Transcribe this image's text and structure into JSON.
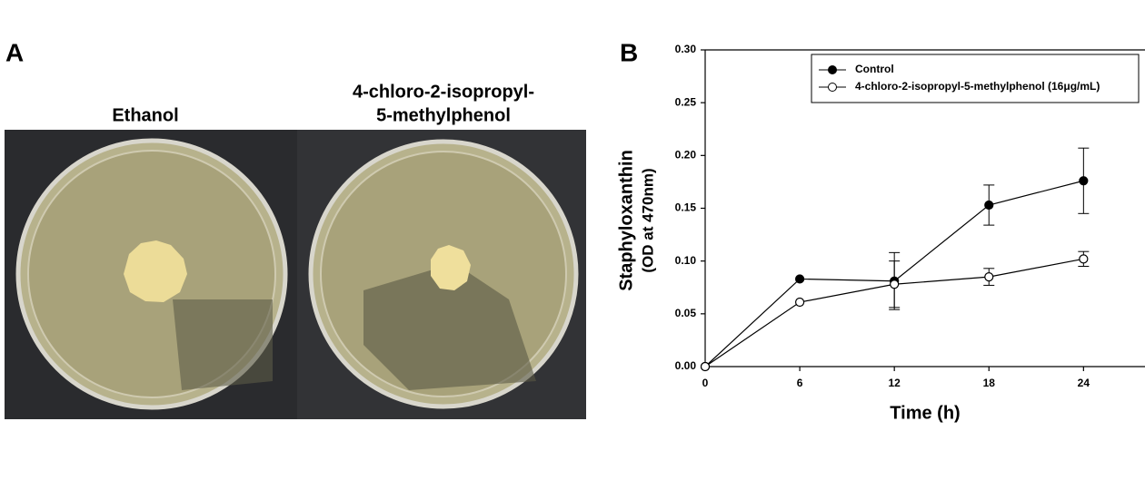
{
  "panel_a": {
    "label": "A",
    "captions": [
      [
        "Ethanol"
      ],
      [
        "4-chloro-2-isopropyl-",
        "5-methylphenol"
      ]
    ]
  },
  "chart_data": {
    "type": "line",
    "panel_label": "B",
    "xlabel": "Time (h)",
    "ylabel": [
      "Staphyloxanthin",
      "(OD at 470nm)"
    ],
    "x": [
      0,
      6,
      12,
      18,
      24
    ],
    "series": [
      {
        "name": "Control",
        "color": "#000000",
        "marker": "filled",
        "values": [
          0,
          0.083,
          0.081,
          0.153,
          0.176
        ],
        "errors": [
          0,
          0,
          0.027,
          0.019,
          0.031
        ]
      },
      {
        "name": "4-chloro-2-isopropyl-5-methylphenol (16μg/mL)",
        "color": "#000000",
        "marker": "open",
        "values": [
          0,
          0.061,
          0.078,
          0.085,
          0.102
        ],
        "errors": [
          0,
          0,
          0.022,
          0.008,
          0.007
        ]
      }
    ],
    "xlim": [
      0,
      27.9
    ],
    "xticks": [
      0,
      6,
      12,
      18,
      24
    ],
    "ylim": [
      0,
      0.3
    ],
    "yticks": [
      {
        "value": 0,
        "label": "0.00"
      },
      {
        "value": 0.05,
        "label": "0.05"
      },
      {
        "value": 0.1,
        "label": "0.10"
      },
      {
        "value": 0.15,
        "label": "0.15"
      },
      {
        "value": 0.2,
        "label": "0.20"
      },
      {
        "value": 0.25,
        "label": "0.25"
      },
      {
        "value": 0.3,
        "label": "0.30"
      }
    ],
    "legend": "top-right"
  }
}
